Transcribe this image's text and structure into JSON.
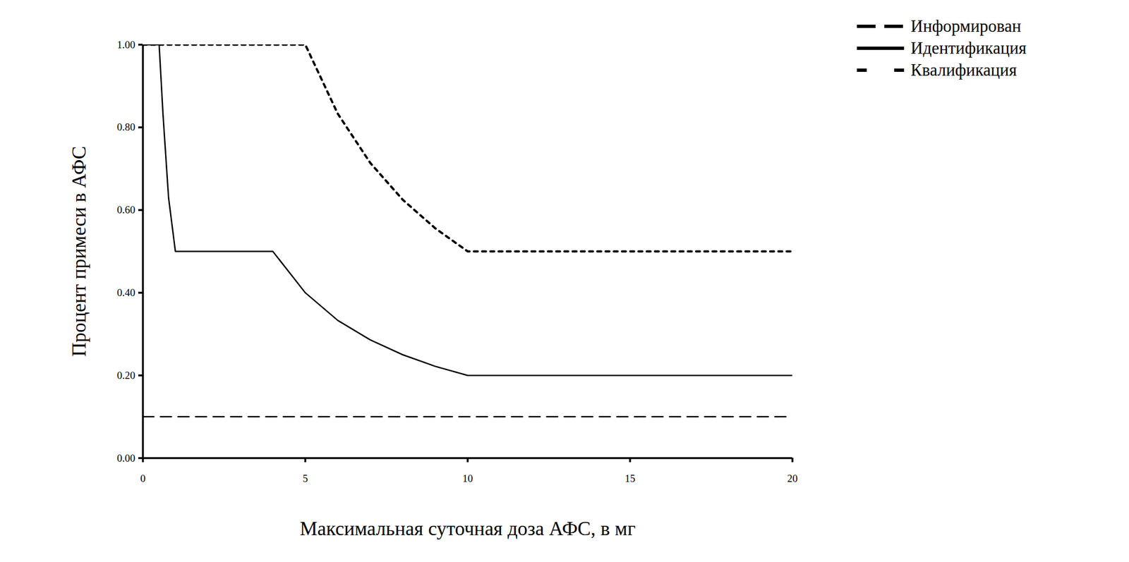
{
  "chart_data": {
    "type": "line",
    "x_label": "Максимальная суточная доза АФС, в мг",
    "y_label": "Процент примеси в АФС",
    "x": [
      0,
      0.5,
      0.62,
      0.79,
      1,
      4,
      5,
      6,
      7,
      8,
      9,
      10,
      20
    ],
    "series": [
      {
        "name": "Информирован",
        "color": "#000000",
        "line_style": "dashed",
        "values": [
          0.1,
          0.1,
          0.1,
          0.1,
          0.1,
          0.1,
          0.1,
          0.1,
          0.1,
          0.1,
          0.1,
          0.1,
          0.1
        ]
      },
      {
        "name": "Идентификация",
        "color": "#000000",
        "line_style": "solid",
        "values": [
          1.0,
          1.0,
          0.83,
          0.63,
          0.5,
          0.5,
          0.4,
          0.333,
          0.286,
          0.25,
          0.222,
          0.2,
          0.2
        ]
      },
      {
        "name": "Квалификация",
        "color": "#000000",
        "line_style": "dotted",
        "values": [
          1.0,
          1.0,
          1.0,
          1.0,
          1.0,
          1.0,
          1.0,
          0.833,
          0.714,
          0.625,
          0.556,
          0.5,
          0.5
        ]
      }
    ],
    "xlim": [
      0,
      20
    ],
    "ylim": [
      0,
      1.0
    ],
    "xticks": [
      0,
      5,
      10,
      15,
      20
    ],
    "yticks": [
      {
        "value": 0,
        "label": "0.00"
      },
      {
        "value": 0.2,
        "label": "0.20"
      },
      {
        "value": 0.4,
        "label": "0.40"
      },
      {
        "value": 0.6,
        "label": "0.60"
      },
      {
        "value": 0.8,
        "label": "0.80"
      },
      {
        "value": 1.0,
        "label": "1.00"
      }
    ],
    "grid": false,
    "legend": "top-right"
  }
}
